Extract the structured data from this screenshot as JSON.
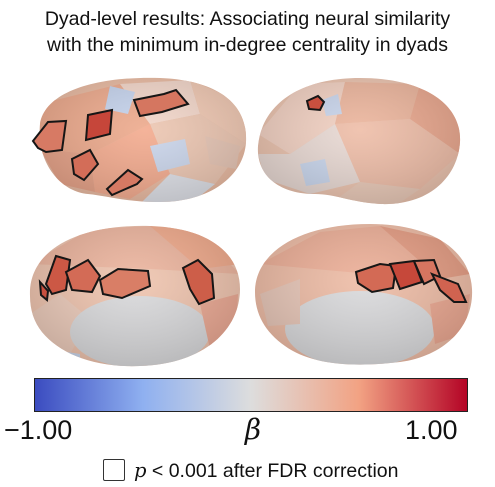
{
  "title": {
    "line1": "Dyad-level results: Associating neural similarity",
    "line2": "with the minimum in-degree centrality in dyads"
  },
  "colorbar": {
    "min_label": "−1.00",
    "max_label": "1.00",
    "symbol": "β",
    "min": -1.0,
    "max": 1.0,
    "colors": {
      "low": "#3b4cc0",
      "mid": "#dddddd",
      "high": "#b40426"
    }
  },
  "legend": {
    "p_symbol": "p",
    "text": " < 0.001 after FDR correction"
  }
}
